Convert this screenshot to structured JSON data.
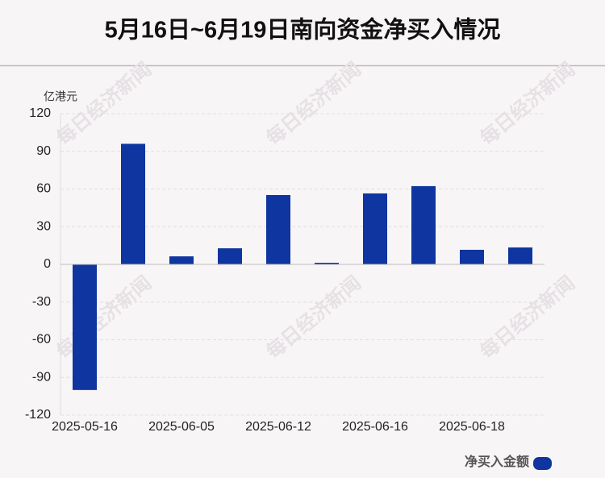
{
  "chart_data": {
    "type": "bar",
    "title": "5月16日~6月19日南向资金净买入情况",
    "y_label": "亿港元",
    "categories": [
      "2025-05-16",
      null,
      "2025-06-05",
      null,
      "2025-06-12",
      null,
      "2025-06-16",
      null,
      "2025-06-18",
      null
    ],
    "series": [
      {
        "name": "净买入金额",
        "color": "#0f35a0",
        "values": [
          -100,
          96,
          6.4,
          12.8,
          55.2,
          1.3,
          56.5,
          62.3,
          11.6,
          13.5
        ]
      }
    ],
    "ylim": [
      -120,
      120
    ],
    "yticks": [
      -120,
      -90,
      -60,
      -30,
      0,
      30,
      60,
      90,
      120
    ],
    "grid": true,
    "legend": "bottom-right",
    "watermark": "每日经济新闻"
  }
}
